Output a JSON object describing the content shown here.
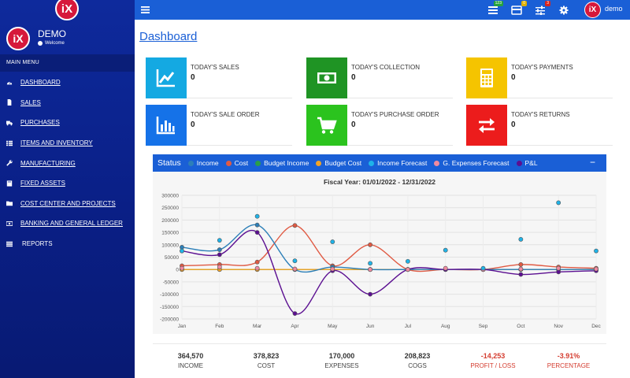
{
  "brand": {
    "logo_text": "iX"
  },
  "sidebar": {
    "user_name": "DEMO",
    "status": "Welcome",
    "menu_header": "MAIN MENU",
    "items": [
      {
        "label": "DASHBOARD",
        "icon": "dashboard-icon"
      },
      {
        "label": "SALES",
        "icon": "file-icon"
      },
      {
        "label": "PURCHASES",
        "icon": "truck-icon"
      },
      {
        "label": "ITEMS AND INVENTORY",
        "icon": "grid-icon"
      },
      {
        "label": "MANUFACTURING",
        "icon": "wrench-icon"
      },
      {
        "label": "FIXED ASSETS",
        "icon": "book-icon"
      },
      {
        "label": "COST CENTER AND PROJECTS",
        "icon": "folder-icon"
      },
      {
        "label": "BANKING AND GENERAL LEDGER",
        "icon": "money-icon"
      },
      {
        "label": "REPORTS",
        "icon": "list-icon"
      }
    ]
  },
  "topbar": {
    "username": "demo",
    "badges": [
      "123",
      "0",
      "3"
    ],
    "badge_colors": [
      "#27a33f",
      "#e0b000",
      "#d9251d"
    ]
  },
  "page": {
    "title": "Dashboard"
  },
  "cards": [
    {
      "label": "TODAY'S SALES",
      "value": "0",
      "color": "#14a9e2",
      "icon": "line-chart-icon"
    },
    {
      "label": "TODAY'S COLLECTION",
      "value": "0",
      "color": "#1f9424",
      "icon": "money-icon"
    },
    {
      "label": "TODAY'S PAYMENTS",
      "value": "0",
      "color": "#f5c400",
      "icon": "calculator-icon"
    },
    {
      "label": "TODAY'S SALE ORDER",
      "value": "0",
      "color": "#1572e8",
      "icon": "bar-chart-icon"
    },
    {
      "label": "TODAY'S PURCHASE ORDER",
      "value": "0",
      "color": "#2bc31e",
      "icon": "cart-icon"
    },
    {
      "label": "TODAY'S RETURNS",
      "value": "0",
      "color": "#ec1c1c",
      "icon": "exchange-icon"
    }
  ],
  "status": {
    "title": "Status",
    "collapse_symbol": "−",
    "legend": [
      {
        "name": "Income",
        "color": "#2c7fb8"
      },
      {
        "name": "Cost",
        "color": "#e05a43"
      },
      {
        "name": "Budget Income",
        "color": "#2a9d4a"
      },
      {
        "name": "Budget Cost",
        "color": "#f2a324"
      },
      {
        "name": "Income Forecast",
        "color": "#1fb3e8"
      },
      {
        "name": "G. Expenses Forecast",
        "color": "#f08aa0"
      },
      {
        "name": "P&L",
        "color": "#5b0f91"
      }
    ]
  },
  "chart_data": {
    "type": "line",
    "title": "Fiscal Year: 01/01/2022 - 12/31/2022",
    "categories": [
      "Jan",
      "Feb",
      "Mar",
      "Apr",
      "May",
      "Jun",
      "Jul",
      "Aug",
      "Sep",
      "Oct",
      "Nov",
      "Dec"
    ],
    "ylim": [
      -200000,
      300000
    ],
    "yticks": [
      300000,
      250000,
      200000,
      150000,
      100000,
      50000,
      0,
      -50000,
      -100000,
      -150000,
      -200000
    ],
    "series": [
      {
        "name": "Income",
        "color": "#2c7fb8",
        "line": true,
        "values": [
          90000,
          80000,
          180000,
          0,
          10000,
          0,
          0,
          0,
          0,
          0,
          0,
          0
        ]
      },
      {
        "name": "Cost",
        "color": "#e05a43",
        "line": true,
        "values": [
          15000,
          20000,
          30000,
          178000,
          15000,
          100000,
          0,
          0,
          0,
          20000,
          10000,
          5000
        ]
      },
      {
        "name": "Budget Income",
        "color": "#2a9d4a",
        "line": true,
        "values": [
          0,
          0,
          0,
          0,
          0,
          0,
          0,
          0,
          0,
          0,
          0,
          0
        ]
      },
      {
        "name": "Budget Cost",
        "color": "#f2a324",
        "line": true,
        "values": [
          0,
          0,
          0,
          0,
          0,
          0,
          0,
          0,
          0,
          0,
          0,
          0
        ]
      },
      {
        "name": "Income Forecast",
        "color": "#1fb3e8",
        "line": false,
        "values": [
          75000,
          118000,
          215000,
          35000,
          112000,
          25000,
          33000,
          78000,
          5000,
          122000,
          270000,
          75000
        ]
      },
      {
        "name": "G. Expenses Forecast",
        "color": "#f08aa0",
        "line": false,
        "values": [
          5000,
          10000,
          5000,
          2000,
          2000,
          0,
          0,
          5000,
          0,
          2000,
          5000,
          2000
        ]
      },
      {
        "name": "P&L",
        "color": "#5b0f91",
        "line": true,
        "values": [
          75000,
          60000,
          150000,
          -178000,
          -5000,
          -100000,
          0,
          0,
          0,
          -20000,
          -10000,
          -5000
        ]
      }
    ]
  },
  "summary": [
    {
      "value": "364,570",
      "label": "INCOME",
      "negative": false
    },
    {
      "value": "378,823",
      "label": "COST",
      "negative": false
    },
    {
      "value": "170,000",
      "label": "EXPENSES",
      "negative": false
    },
    {
      "value": "208,823",
      "label": "COGS",
      "negative": false
    },
    {
      "value": "-14,253",
      "label": "PROFIT / LOSS",
      "negative": true
    },
    {
      "value": "-3.91%",
      "label": "PERCENTAGE",
      "negative": true
    }
  ]
}
